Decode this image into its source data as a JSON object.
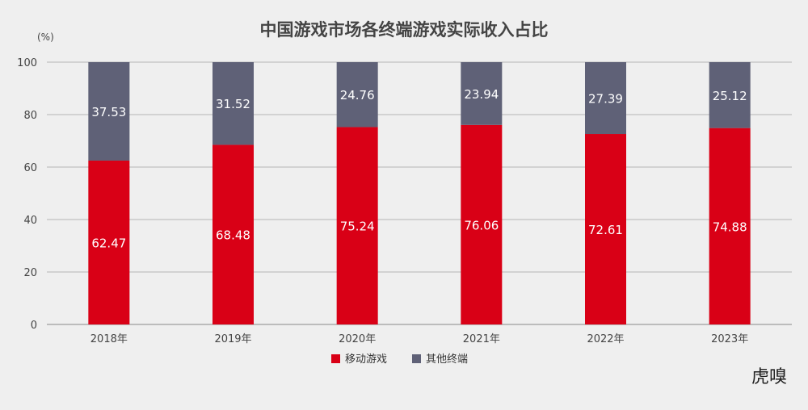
{
  "chart_data": {
    "type": "bar",
    "stacked": true,
    "title": "中国游戏市场各终端游戏实际收入占比",
    "y_unit": "(%)",
    "categories": [
      "2018年",
      "2019年",
      "2020年",
      "2021年",
      "2022年",
      "2023年"
    ],
    "series": [
      {
        "name": "移动游戏",
        "color": "#d90016",
        "values": [
          62.47,
          68.48,
          75.24,
          76.06,
          72.61,
          74.88
        ]
      },
      {
        "name": "其他终端",
        "color": "#5f6177",
        "values": [
          37.53,
          31.52,
          24.76,
          23.94,
          27.39,
          25.12
        ]
      }
    ],
    "ylim": [
      0,
      100
    ],
    "yticks": [
      0,
      20,
      40,
      60,
      80,
      100
    ],
    "grid": true,
    "legend_position": "bottom-center"
  },
  "watermark": {
    "text": "虎嗅",
    "accent": "#d90016"
  }
}
